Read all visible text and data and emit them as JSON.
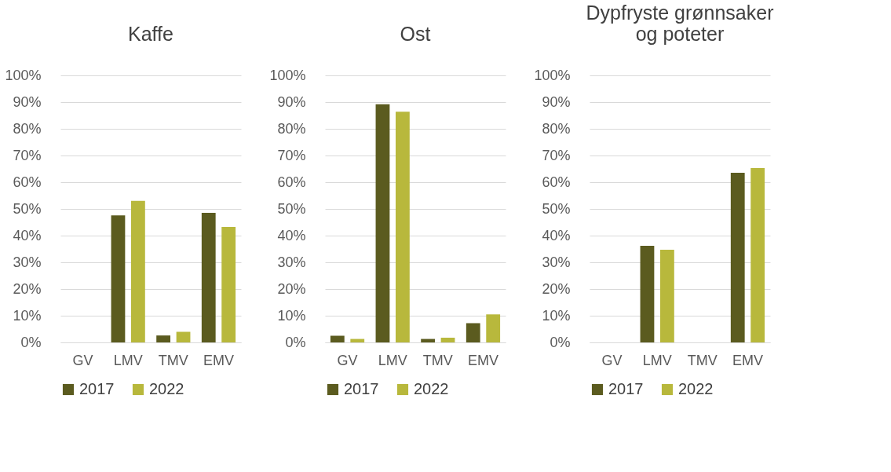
{
  "chart_data": [
    {
      "type": "bar",
      "title": "Kaffe",
      "categories": [
        "GV",
        "LMV",
        "TMV",
        "EMV"
      ],
      "series": [
        {
          "name": "2017",
          "color": "#5b5b1f",
          "values": [
            0,
            47.6,
            2.6,
            48.5
          ]
        },
        {
          "name": "2022",
          "color": "#b8b83c",
          "values": [
            0,
            53,
            4,
            43.2
          ]
        }
      ],
      "ylim": [
        0,
        100
      ],
      "yticks": [
        {
          "value": 0,
          "label": "0%"
        },
        {
          "value": 10,
          "label": "10%"
        },
        {
          "value": 20,
          "label": "20%"
        },
        {
          "value": 30,
          "label": "30%"
        },
        {
          "value": 40,
          "label": "40%"
        },
        {
          "value": 50,
          "label": "50%"
        },
        {
          "value": 60,
          "label": "60%"
        },
        {
          "value": 70,
          "label": "70%"
        },
        {
          "value": 80,
          "label": "80%"
        },
        {
          "value": 90,
          "label": "90%"
        },
        {
          "value": 100,
          "label": "100%"
        }
      ],
      "grid": "y",
      "legend": "bottom"
    },
    {
      "type": "bar",
      "title": "Ost",
      "categories": [
        "GV",
        "LMV",
        "TMV",
        "EMV"
      ],
      "series": [
        {
          "name": "2017",
          "color": "#5b5b1f",
          "values": [
            2.5,
            89.2,
            1.3,
            7.2
          ]
        },
        {
          "name": "2022",
          "color": "#b8b83c",
          "values": [
            1.3,
            86.4,
            1.8,
            10.5
          ]
        }
      ],
      "ylim": [
        0,
        100
      ],
      "yticks": [
        {
          "value": 0,
          "label": "0%"
        },
        {
          "value": 10,
          "label": "10%"
        },
        {
          "value": 20,
          "label": "20%"
        },
        {
          "value": 30,
          "label": "30%"
        },
        {
          "value": 40,
          "label": "40%"
        },
        {
          "value": 50,
          "label": "50%"
        },
        {
          "value": 60,
          "label": "60%"
        },
        {
          "value": 70,
          "label": "70%"
        },
        {
          "value": 80,
          "label": "80%"
        },
        {
          "value": 90,
          "label": "90%"
        },
        {
          "value": 100,
          "label": "100%"
        }
      ],
      "grid": "y",
      "legend": "bottom"
    },
    {
      "type": "bar",
      "title": "Dypfryste grønnsaker\nog poteter",
      "categories": [
        "GV",
        "LMV",
        "TMV",
        "EMV"
      ],
      "series": [
        {
          "name": "2017",
          "color": "#5b5b1f",
          "values": [
            0,
            36.2,
            0,
            63.5
          ]
        },
        {
          "name": "2022",
          "color": "#b8b83c",
          "values": [
            0,
            34.7,
            0,
            65.3
          ]
        }
      ],
      "ylim": [
        0,
        100
      ],
      "yticks": [
        {
          "value": 0,
          "label": "0%"
        },
        {
          "value": 10,
          "label": "10%"
        },
        {
          "value": 20,
          "label": "20%"
        },
        {
          "value": 30,
          "label": "30%"
        },
        {
          "value": 40,
          "label": "40%"
        },
        {
          "value": 50,
          "label": "50%"
        },
        {
          "value": 60,
          "label": "60%"
        },
        {
          "value": 70,
          "label": "70%"
        },
        {
          "value": 80,
          "label": "80%"
        },
        {
          "value": 90,
          "label": "90%"
        },
        {
          "value": 100,
          "label": "100%"
        }
      ],
      "grid": "y",
      "legend": "bottom"
    }
  ]
}
